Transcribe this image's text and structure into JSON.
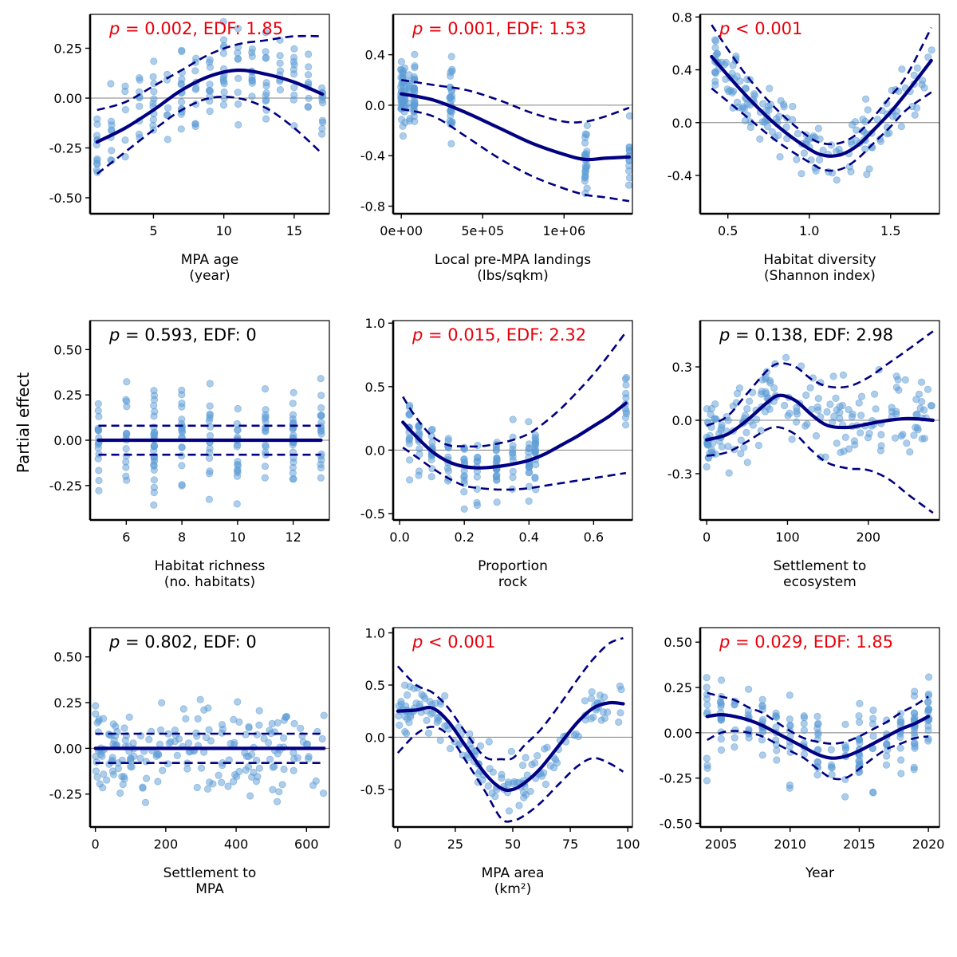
{
  "figure": {
    "ylabel": "Partial effect",
    "colors": {
      "points": "#5b9bd5",
      "fit": "#000080",
      "ci": "#000080",
      "sig": "#e8000b",
      "ns": "#000000",
      "zero": "#808080",
      "frame": "#000000"
    }
  },
  "chart_data": [
    {
      "type": "scatter",
      "id": "age",
      "xlabel": [
        "MPA age",
        "(year)"
      ],
      "annotation": {
        "p_label": "p",
        "text": " = 0.002, EDF: 1.85",
        "significant": true
      },
      "xlim": [
        0.5,
        17.5
      ],
      "ylim": [
        -0.58,
        0.42
      ],
      "xticks": [
        5,
        10,
        15
      ],
      "xtick_labels": [
        "5",
        "10",
        "15"
      ],
      "yticks": [
        -0.5,
        -0.25,
        0,
        0.25
      ],
      "ytick_labels": [
        "-0.50",
        "-0.25",
        "0.00",
        "0.25"
      ],
      "fit": {
        "x": [
          1,
          3,
          5,
          7,
          9,
          11,
          13,
          15,
          17
        ],
        "y": [
          -0.22,
          -0.15,
          -0.06,
          0.04,
          0.11,
          0.14,
          0.12,
          0.08,
          0.02
        ]
      },
      "ci_upper": {
        "x": [
          1,
          3,
          5,
          7,
          9,
          11,
          13,
          15,
          17
        ],
        "y": [
          -0.06,
          -0.02,
          0.06,
          0.14,
          0.22,
          0.27,
          0.29,
          0.31,
          0.31
        ]
      },
      "ci_lower": {
        "x": [
          1,
          3,
          5,
          7,
          9,
          11,
          13,
          15,
          17
        ],
        "y": [
          -0.38,
          -0.27,
          -0.16,
          -0.06,
          0.0,
          0.0,
          -0.05,
          -0.15,
          -0.28
        ]
      },
      "scatter": {
        "x_range": [
          1,
          17
        ],
        "x_levels": [
          1,
          2,
          3,
          4,
          5,
          6,
          7,
          8,
          9,
          10,
          11,
          12,
          13,
          14,
          15,
          16,
          17
        ],
        "spread": 0.13,
        "n": 170,
        "seed": 11
      }
    },
    {
      "type": "scatter",
      "id": "landings",
      "xlabel": [
        "Local pre-MPA landings",
        "(lbs/sqkm)"
      ],
      "annotation": {
        "p_label": "p",
        "text": " = 0.001, EDF: 1.53",
        "significant": true
      },
      "xlim": [
        -50000,
        1420000
      ],
      "ylim": [
        -0.86,
        0.72
      ],
      "xticks": [
        0,
        500000,
        1000000
      ],
      "xtick_labels": [
        "0e+00",
        "5e+05",
        "1e+06"
      ],
      "yticks": [
        -0.8,
        -0.4,
        0,
        0.4
      ],
      "ytick_labels": [
        "-0.8",
        "-0.4",
        "0.0",
        "0.4"
      ],
      "fit": {
        "x": [
          0,
          200000,
          400000,
          600000,
          800000,
          1000000,
          1130000,
          1250000,
          1400000
        ],
        "y": [
          0.09,
          0.04,
          -0.06,
          -0.18,
          -0.3,
          -0.39,
          -0.43,
          -0.42,
          -0.41
        ]
      },
      "ci_upper": {
        "x": [
          0,
          200000,
          400000,
          600000,
          800000,
          1000000,
          1130000,
          1250000,
          1400000
        ],
        "y": [
          0.2,
          0.16,
          0.12,
          0.04,
          -0.06,
          -0.13,
          -0.13,
          -0.09,
          -0.02
        ]
      },
      "ci_lower": {
        "x": [
          0,
          200000,
          400000,
          600000,
          800000,
          1000000,
          1130000,
          1250000,
          1400000
        ],
        "y": [
          -0.03,
          -0.09,
          -0.25,
          -0.42,
          -0.56,
          -0.66,
          -0.71,
          -0.73,
          -0.76
        ]
      },
      "scatter": {
        "x_range": [
          0,
          1400000
        ],
        "x_levels": [
          0,
          10000,
          20000,
          50000,
          80000,
          300000,
          310000,
          1130000,
          1140000,
          1400000
        ],
        "spread": 0.13,
        "n": 150,
        "seed": 23
      }
    },
    {
      "type": "scatter",
      "id": "shannon",
      "xlabel": [
        "Habitat diversity",
        "(Shannon index)"
      ],
      "annotation": {
        "p_label": "p",
        "text": " < 0.001",
        "significant": true
      },
      "xlim": [
        0.33,
        1.8
      ],
      "ylim": [
        -0.69,
        0.82
      ],
      "xticks": [
        0.5,
        1.0,
        1.5
      ],
      "xtick_labels": [
        "0.5",
        "1.0",
        "1.5"
      ],
      "yticks": [
        -0.4,
        0,
        0.4,
        0.8
      ],
      "ytick_labels": [
        "-0.4",
        "0.0",
        "0.4",
        "0.8"
      ],
      "fit": {
        "x": [
          0.4,
          0.6,
          0.8,
          1.0,
          1.1,
          1.2,
          1.3,
          1.4,
          1.5,
          1.6,
          1.75
        ],
        "y": [
          0.5,
          0.22,
          -0.02,
          -0.2,
          -0.25,
          -0.24,
          -0.17,
          -0.05,
          0.08,
          0.23,
          0.47
        ]
      },
      "ci_upper": {
        "x": [
          0.4,
          0.6,
          0.8,
          1.0,
          1.1,
          1.2,
          1.3,
          1.4,
          1.5,
          1.6,
          1.75
        ],
        "y": [
          0.74,
          0.38,
          0.1,
          -0.11,
          -0.16,
          -0.15,
          -0.08,
          0.05,
          0.2,
          0.36,
          0.72
        ]
      },
      "ci_lower": {
        "x": [
          0.4,
          0.6,
          0.8,
          1.0,
          1.1,
          1.2,
          1.3,
          1.4,
          1.5,
          1.6,
          1.75
        ],
        "y": [
          0.26,
          0.06,
          -0.14,
          -0.3,
          -0.36,
          -0.35,
          -0.27,
          -0.15,
          -0.03,
          0.1,
          0.23
        ]
      },
      "scatter": {
        "x_range": [
          0.42,
          1.76
        ],
        "x_levels": [],
        "spread": 0.12,
        "n": 170,
        "seed": 37
      }
    },
    {
      "type": "scatter",
      "id": "richness",
      "xlabel": [
        "Habitat richness",
        "(no. habitats)"
      ],
      "annotation": {
        "p_label": "p",
        "text": " = 0.593, EDF: 0",
        "significant": false
      },
      "xlim": [
        4.7,
        13.3
      ],
      "ylim": [
        -0.44,
        0.66
      ],
      "xticks": [
        6,
        8,
        10,
        12
      ],
      "xtick_labels": [
        "6",
        "8",
        "10",
        "12"
      ],
      "yticks": [
        -0.25,
        0,
        0.25,
        0.5
      ],
      "ytick_labels": [
        "-0.25",
        "0.00",
        "0.25",
        "0.50"
      ],
      "fit": {
        "x": [
          5,
          13
        ],
        "y": [
          0,
          0
        ]
      },
      "ci_upper": {
        "x": [
          5,
          13
        ],
        "y": [
          0.08,
          0.08
        ]
      },
      "ci_lower": {
        "x": [
          5,
          13
        ],
        "y": [
          -0.08,
          -0.08
        ]
      },
      "scatter": {
        "x_range": [
          5,
          13
        ],
        "x_levels": [
          5,
          6,
          7,
          8,
          9,
          10,
          11,
          12,
          13
        ],
        "spread": 0.14,
        "n": 170,
        "seed": 41
      }
    },
    {
      "type": "scatter",
      "id": "rock",
      "xlabel": [
        "Proportion",
        "rock"
      ],
      "annotation": {
        "p_label": "p",
        "text": " = 0.015, EDF: 2.32",
        "significant": true
      },
      "xlim": [
        -0.02,
        0.72
      ],
      "ylim": [
        -0.55,
        1.02
      ],
      "xticks": [
        0.0,
        0.2,
        0.4,
        0.6
      ],
      "xtick_labels": [
        "0.0",
        "0.2",
        "0.4",
        "0.6"
      ],
      "yticks": [
        -0.5,
        0,
        0.5,
        1.0
      ],
      "ytick_labels": [
        "-0.5",
        "0.0",
        "0.5",
        "1.0"
      ],
      "fit": {
        "x": [
          0.01,
          0.05,
          0.1,
          0.15,
          0.2,
          0.25,
          0.3,
          0.35,
          0.4,
          0.45,
          0.5,
          0.55,
          0.6,
          0.65,
          0.7
        ],
        "y": [
          0.22,
          0.11,
          -0.01,
          -0.09,
          -0.13,
          -0.14,
          -0.13,
          -0.11,
          -0.08,
          -0.03,
          0.04,
          0.11,
          0.19,
          0.27,
          0.37
        ]
      },
      "ci_upper": {
        "x": [
          0.01,
          0.05,
          0.1,
          0.15,
          0.2,
          0.25,
          0.3,
          0.35,
          0.4,
          0.45,
          0.5,
          0.55,
          0.6,
          0.65,
          0.7
        ],
        "y": [
          0.42,
          0.26,
          0.11,
          0.04,
          0.03,
          0.03,
          0.05,
          0.08,
          0.13,
          0.22,
          0.33,
          0.46,
          0.6,
          0.76,
          0.93
        ]
      },
      "ci_lower": {
        "x": [
          0.01,
          0.05,
          0.1,
          0.15,
          0.2,
          0.25,
          0.3,
          0.35,
          0.4,
          0.45,
          0.5,
          0.55,
          0.6,
          0.65,
          0.7
        ],
        "y": [
          0.02,
          -0.05,
          -0.14,
          -0.22,
          -0.28,
          -0.3,
          -0.31,
          -0.31,
          -0.3,
          -0.28,
          -0.26,
          -0.24,
          -0.22,
          -0.2,
          -0.18
        ]
      },
      "scatter": {
        "x_range": [
          0.01,
          0.7
        ],
        "x_levels": [
          0.03,
          0.06,
          0.1,
          0.15,
          0.2,
          0.24,
          0.3,
          0.35,
          0.4,
          0.42,
          0.7
        ],
        "spread": 0.14,
        "n": 160,
        "seed": 53
      }
    },
    {
      "type": "scatter",
      "id": "settle_eco",
      "xlabel": [
        "Settlement to",
        "ecosystem"
      ],
      "annotation": {
        "p_label": "p",
        "text": " = 0.138, EDF: 2.98",
        "significant": false
      },
      "xlim": [
        -8,
        288
      ],
      "ylim": [
        -0.56,
        0.56
      ],
      "xticks": [
        0,
        100,
        200
      ],
      "xtick_labels": [
        "0",
        "100",
        "200"
      ],
      "yticks": [
        -0.3,
        0,
        0.3
      ],
      "ytick_labels": [
        "-0.3",
        "0.0",
        "0.3"
      ],
      "fit": {
        "x": [
          0,
          25,
          50,
          75,
          90,
          110,
          130,
          150,
          175,
          200,
          225,
          250,
          280
        ],
        "y": [
          -0.11,
          -0.08,
          0.0,
          0.1,
          0.14,
          0.11,
          0.03,
          -0.03,
          -0.04,
          -0.02,
          0.0,
          0.01,
          0.0
        ]
      },
      "ci_upper": {
        "x": [
          0,
          25,
          50,
          75,
          90,
          110,
          130,
          150,
          175,
          200,
          225,
          250,
          280
        ],
        "y": [
          -0.03,
          0.02,
          0.15,
          0.28,
          0.32,
          0.3,
          0.23,
          0.19,
          0.19,
          0.24,
          0.32,
          0.4,
          0.5
        ]
      },
      "ci_lower": {
        "x": [
          0,
          25,
          50,
          75,
          90,
          110,
          130,
          150,
          175,
          200,
          225,
          250,
          280
        ],
        "y": [
          -0.2,
          -0.18,
          -0.12,
          -0.05,
          -0.04,
          -0.08,
          -0.17,
          -0.24,
          -0.27,
          -0.28,
          -0.33,
          -0.42,
          -0.52
        ]
      },
      "scatter": {
        "x_range": [
          0,
          280
        ],
        "x_levels": [],
        "spread": 0.11,
        "n": 190,
        "seed": 67
      }
    },
    {
      "type": "scatter",
      "id": "settle_mpa",
      "xlabel": [
        "Settlement to",
        "MPA"
      ],
      "annotation": {
        "p_label": "p",
        "text": " = 0.802, EDF: 0",
        "significant": false
      },
      "xlim": [
        -15,
        665
      ],
      "ylim": [
        -0.43,
        0.66
      ],
      "xticks": [
        0,
        200,
        400,
        600
      ],
      "xtick_labels": [
        "0",
        "200",
        "400",
        "600"
      ],
      "yticks": [
        -0.25,
        0,
        0.25,
        0.5
      ],
      "ytick_labels": [
        "-0.25",
        "0.00",
        "0.25",
        "0.50"
      ],
      "fit": {
        "x": [
          0,
          650
        ],
        "y": [
          0,
          0
        ]
      },
      "ci_upper": {
        "x": [
          0,
          650
        ],
        "y": [
          0.08,
          0.08
        ]
      },
      "ci_lower": {
        "x": [
          0,
          650
        ],
        "y": [
          -0.08,
          -0.08
        ]
      },
      "scatter": {
        "x_range": [
          0,
          650
        ],
        "x_levels": [],
        "spread": 0.12,
        "n": 200,
        "seed": 79
      }
    },
    {
      "type": "scatter",
      "id": "area",
      "xlabel": [
        "MPA area",
        "(km²)"
      ],
      "annotation": {
        "p_label": "p",
        "text": " < 0.001",
        "significant": true
      },
      "xlim": [
        -2,
        102
      ],
      "ylim": [
        -0.86,
        1.05
      ],
      "xticks": [
        0,
        25,
        50,
        75,
        100
      ],
      "xtick_labels": [
        "0",
        "25",
        "50",
        "75",
        "100"
      ],
      "yticks": [
        -0.5,
        0,
        0.5,
        1.0
      ],
      "ytick_labels": [
        "-0.5",
        "0.0",
        "0.5",
        "1.0"
      ],
      "fit": {
        "x": [
          0,
          8,
          15,
          22,
          30,
          38,
          45,
          50,
          55,
          62,
          70,
          78,
          85,
          92,
          98
        ],
        "y": [
          0.25,
          0.26,
          0.28,
          0.15,
          -0.1,
          -0.35,
          -0.49,
          -0.5,
          -0.44,
          -0.3,
          -0.08,
          0.14,
          0.28,
          0.33,
          0.32
        ]
      },
      "ci_upper": {
        "x": [
          0,
          8,
          15,
          22,
          30,
          38,
          45,
          50,
          55,
          62,
          70,
          78,
          85,
          92,
          98
        ],
        "y": [
          0.68,
          0.5,
          0.43,
          0.28,
          0.03,
          -0.19,
          -0.21,
          -0.2,
          -0.08,
          0.07,
          0.3,
          0.55,
          0.75,
          0.9,
          0.95
        ]
      },
      "ci_lower": {
        "x": [
          0,
          8,
          15,
          22,
          30,
          38,
          45,
          50,
          55,
          62,
          70,
          78,
          85,
          92,
          98
        ],
        "y": [
          -0.15,
          0.03,
          0.1,
          0.02,
          -0.24,
          -0.52,
          -0.78,
          -0.8,
          -0.75,
          -0.63,
          -0.45,
          -0.28,
          -0.2,
          -0.25,
          -0.33
        ]
      },
      "scatter": {
        "x_range": [
          0,
          98
        ],
        "x_levels": [],
        "spread": 0.12,
        "n": 160,
        "seed": 89
      }
    },
    {
      "type": "scatter",
      "id": "year",
      "xlabel": [
        "Year"
      ],
      "annotation": {
        "p_label": "p",
        "text": " = 0.029, EDF: 1.85",
        "significant": true
      },
      "xlim": [
        2003.5,
        2020.8
      ],
      "ylim": [
        -0.52,
        0.58
      ],
      "xticks": [
        2005,
        2010,
        2015,
        2020
      ],
      "xtick_labels": [
        "2005",
        "2010",
        "2015",
        "2020"
      ],
      "yticks": [
        -0.5,
        -0.25,
        0,
        0.25,
        0.5
      ],
      "ytick_labels": [
        "-0.50",
        "-0.25",
        "0.00",
        "0.25",
        "0.50"
      ],
      "fit": {
        "x": [
          2004,
          2005,
          2006,
          2007,
          2008,
          2009,
          2010,
          2011,
          2012,
          2013,
          2014,
          2015,
          2016,
          2017,
          2018,
          2019,
          2020
        ],
        "y": [
          0.09,
          0.1,
          0.09,
          0.07,
          0.04,
          0.0,
          -0.04,
          -0.08,
          -0.12,
          -0.14,
          -0.13,
          -0.1,
          -0.06,
          -0.02,
          0.02,
          0.05,
          0.09
        ]
      },
      "ci_upper": {
        "x": [
          2004,
          2005,
          2006,
          2007,
          2008,
          2009,
          2010,
          2011,
          2012,
          2013,
          2014,
          2015,
          2016,
          2017,
          2018,
          2019,
          2020
        ],
        "y": [
          0.22,
          0.2,
          0.18,
          0.14,
          0.11,
          0.06,
          0.01,
          -0.03,
          -0.05,
          -0.06,
          -0.05,
          -0.02,
          0.02,
          0.06,
          0.11,
          0.15,
          0.2
        ]
      },
      "ci_lower": {
        "x": [
          2004,
          2005,
          2006,
          2007,
          2008,
          2009,
          2010,
          2011,
          2012,
          2013,
          2014,
          2015,
          2016,
          2017,
          2018,
          2019,
          2020
        ],
        "y": [
          -0.04,
          0.0,
          0.01,
          0.0,
          -0.02,
          -0.06,
          -0.1,
          -0.14,
          -0.2,
          -0.25,
          -0.25,
          -0.2,
          -0.14,
          -0.09,
          -0.06,
          -0.03,
          -0.02
        ]
      },
      "scatter": {
        "x_range": [
          2004,
          2020
        ],
        "x_levels": [
          2004,
          2005,
          2006,
          2007,
          2008,
          2009,
          2010,
          2011,
          2012,
          2013,
          2014,
          2015,
          2016,
          2017,
          2018,
          2019,
          2020
        ],
        "spread": 0.12,
        "n": 200,
        "seed": 97
      }
    }
  ]
}
